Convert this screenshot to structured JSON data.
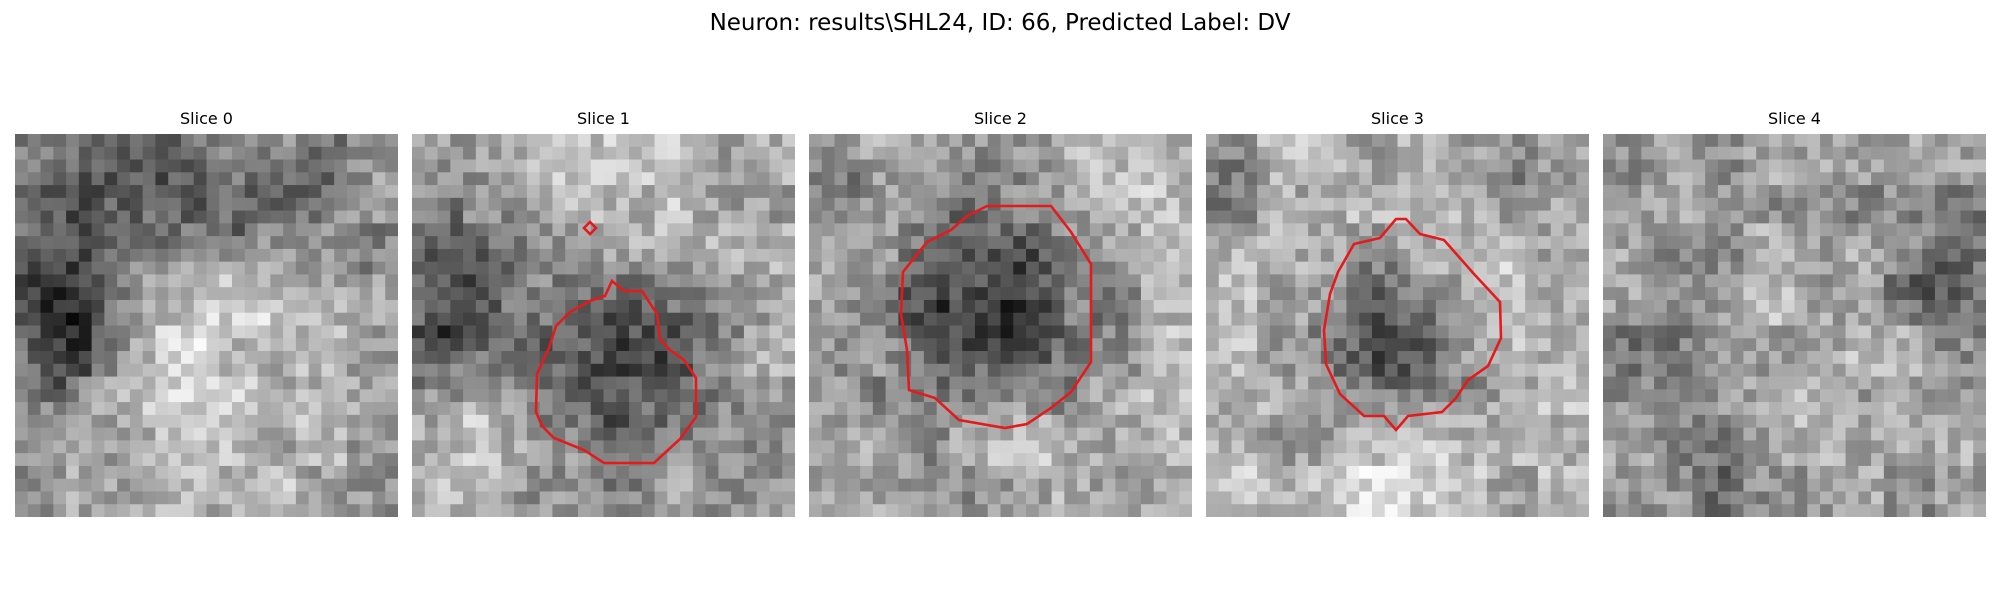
{
  "figure": {
    "suptitle": "Neuron: results\\SHL24, ID: 66, Predicted Label: DV",
    "contour_color": "#e41a1c",
    "panels": [
      {
        "title": "Slice 0",
        "seed": 11,
        "base": 150,
        "blobs": [
          [
            0.28,
            0.2,
            0.16,
            -70
          ],
          [
            0.08,
            0.42,
            0.1,
            -80
          ],
          [
            0.12,
            0.58,
            0.08,
            -90
          ],
          [
            0.7,
            0.15,
            0.12,
            -45
          ],
          [
            0.55,
            0.25,
            0.1,
            -30
          ]
        ],
        "bright": [
          [
            0.5,
            0.4,
            0.12,
            60
          ],
          [
            0.55,
            0.75,
            0.25,
            45
          ]
        ],
        "contours": []
      },
      {
        "title": "Slice 1",
        "seed": 23,
        "base": 165,
        "blobs": [
          [
            0.52,
            0.6,
            0.17,
            -105
          ],
          [
            0.15,
            0.35,
            0.13,
            -80
          ],
          [
            0.06,
            0.55,
            0.07,
            -90
          ],
          [
            0.8,
            0.45,
            0.07,
            -40
          ]
        ],
        "bright": [
          [
            0.5,
            0.2,
            0.18,
            40
          ],
          [
            0.15,
            0.8,
            0.12,
            35
          ]
        ],
        "contours": [
          "P1",
          "P1S"
        ]
      },
      {
        "title": "Slice 2",
        "seed": 37,
        "base": 175,
        "blobs": [
          [
            0.47,
            0.47,
            0.19,
            -130
          ],
          [
            0.1,
            0.15,
            0.08,
            -40
          ],
          [
            0.4,
            0.9,
            0.1,
            -40
          ]
        ],
        "bright": [
          [
            0.5,
            0.78,
            0.12,
            40
          ],
          [
            0.75,
            0.15,
            0.1,
            35
          ]
        ],
        "contours": [
          "P2"
        ]
      },
      {
        "title": "Slice 3",
        "seed": 41,
        "base": 175,
        "blobs": [
          [
            0.5,
            0.57,
            0.14,
            -110
          ],
          [
            0.05,
            0.15,
            0.1,
            -50
          ],
          [
            0.8,
            0.15,
            0.08,
            -30
          ]
        ],
        "bright": [
          [
            0.5,
            0.85,
            0.15,
            40
          ],
          [
            0.75,
            0.4,
            0.1,
            25
          ]
        ],
        "contours": [
          "P3"
        ]
      },
      {
        "title": "Slice 4",
        "seed": 59,
        "base": 155,
        "blobs": [
          [
            0.88,
            0.35,
            0.1,
            -60
          ],
          [
            0.3,
            0.85,
            0.12,
            -40
          ],
          [
            0.1,
            0.55,
            0.1,
            -30
          ]
        ],
        "bright": [
          [
            0.55,
            0.6,
            0.2,
            25
          ]
        ],
        "contours": []
      }
    ]
  }
}
